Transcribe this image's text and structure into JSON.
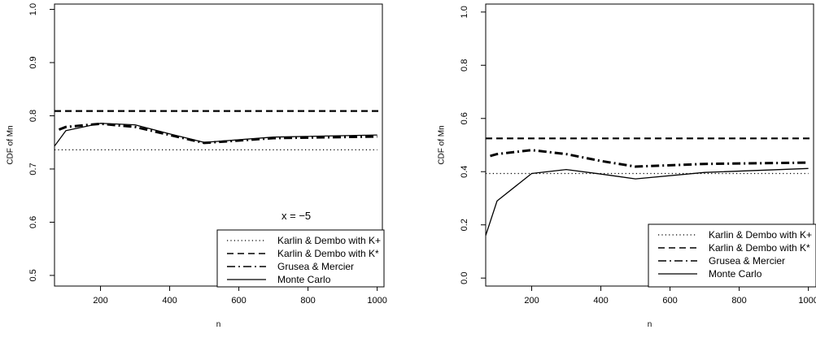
{
  "chart_data": [
    {
      "type": "line",
      "xlabel": "n",
      "ylabel": "CDF of Mn",
      "xlim": [
        67,
        1015
      ],
      "ylim": [
        0.48,
        1.01
      ],
      "xticks": [
        200,
        400,
        600,
        800,
        1000
      ],
      "yticks": [
        0.5,
        0.6,
        0.7,
        0.8,
        0.9,
        1.0
      ],
      "ytick_labels": [
        "0.5",
        "0.6",
        "0.7",
        "0.8",
        "0.9",
        "1.0"
      ],
      "annotation": "x = −5",
      "legend_position": "bottom-right",
      "series": [
        {
          "name": "Karlin & Dembo with K+",
          "style": "dotted",
          "x": [
            67,
            1000
          ],
          "y": [
            0.736,
            0.736
          ]
        },
        {
          "name": "Karlin & Dembo with K*",
          "style": "dashed",
          "x": [
            67,
            1015
          ],
          "y": [
            0.809,
            0.809
          ]
        },
        {
          "name": "Grusea & Mercier",
          "style": "dotdash",
          "x": [
            80,
            100,
            200,
            300,
            400,
            500,
            700,
            1000
          ],
          "y": [
            0.774,
            0.779,
            0.785,
            0.779,
            0.764,
            0.749,
            0.758,
            0.761
          ]
        },
        {
          "name": "Monte Carlo",
          "style": "solid",
          "x": [
            67,
            100,
            200,
            300,
            400,
            500,
            700,
            1000
          ],
          "y": [
            0.743,
            0.772,
            0.786,
            0.783,
            0.766,
            0.75,
            0.76,
            0.764
          ]
        }
      ]
    },
    {
      "type": "line",
      "xlabel": "n",
      "ylabel": "CDF of Mn",
      "xlim": [
        67,
        1015
      ],
      "ylim": [
        -0.03,
        1.03
      ],
      "xticks": [
        200,
        400,
        600,
        800,
        1000
      ],
      "yticks": [
        0.0,
        0.2,
        0.4,
        0.6,
        0.8,
        1.0
      ],
      "ytick_labels": [
        "0.0",
        "0.2",
        "0.4",
        "0.6",
        "0.8",
        "1.0"
      ],
      "legend_position": "bottom-right",
      "series": [
        {
          "name": "Karlin & Dembo with K+",
          "style": "dotted",
          "x": [
            67,
            1000
          ],
          "y": [
            0.393,
            0.393
          ]
        },
        {
          "name": "Karlin & Dembo with K*",
          "style": "dashed",
          "x": [
            67,
            1015
          ],
          "y": [
            0.525,
            0.525
          ]
        },
        {
          "name": "Grusea & Mercier",
          "style": "dotdash",
          "x": [
            80,
            100,
            200,
            300,
            400,
            500,
            700,
            1000
          ],
          "y": [
            0.459,
            0.466,
            0.481,
            0.466,
            0.44,
            0.419,
            0.429,
            0.434
          ]
        },
        {
          "name": "Monte Carlo",
          "style": "solid",
          "x": [
            67,
            100,
            200,
            300,
            400,
            500,
            700,
            1000
          ],
          "y": [
            0.16,
            0.29,
            0.393,
            0.408,
            0.391,
            0.373,
            0.397,
            0.412
          ]
        }
      ]
    }
  ]
}
